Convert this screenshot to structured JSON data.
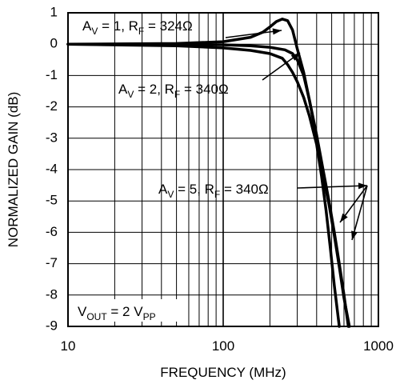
{
  "chart_data": {
    "type": "line",
    "title": "",
    "xlabel": "FREQUENCY (MHz)",
    "ylabel": "NORMALIZED GAIN (dB)",
    "xscale": "log",
    "xlim": [
      10,
      1000
    ],
    "ylim": [
      -9,
      1
    ],
    "x_ticks": [
      "10",
      "100",
      "1000"
    ],
    "y_ticks": [
      "1",
      "0",
      "-1",
      "-2",
      "-3",
      "-4",
      "-5",
      "-6",
      "-7",
      "-8",
      "-9"
    ],
    "grid": true,
    "series": [
      {
        "name": "A_V = 1, R_F = 324Ω",
        "x": [
          10,
          50,
          100,
          150,
          180,
          200,
          220,
          240,
          260,
          280,
          300,
          330,
          360,
          400,
          440,
          480,
          520,
          560,
          600,
          640
        ],
        "y": [
          0,
          0.02,
          0.08,
          0.22,
          0.38,
          0.55,
          0.72,
          0.8,
          0.75,
          0.45,
          -0.15,
          -0.9,
          -1.8,
          -2.9,
          -4.0,
          -5.0,
          -6.0,
          -7.0,
          -8.0,
          -9.0
        ]
      },
      {
        "name": "A_V = 2, R_F = 340Ω",
        "x": [
          10,
          50,
          100,
          150,
          200,
          240,
          260,
          280,
          300,
          330,
          360,
          400,
          430,
          460,
          490,
          520,
          560
        ],
        "y": [
          0,
          -0.05,
          -0.12,
          -0.2,
          -0.3,
          -0.45,
          -0.65,
          -0.9,
          -1.2,
          -1.7,
          -2.3,
          -3.2,
          -4.2,
          -5.3,
          -6.5,
          -7.7,
          -9.0
        ]
      },
      {
        "name": "A_V = 5, R_F = 340Ω",
        "x": [
          10,
          50,
          100,
          150,
          200,
          250,
          280,
          300,
          330,
          360,
          400,
          440,
          480,
          520,
          560,
          600,
          650
        ],
        "y": [
          0,
          -0.01,
          -0.02,
          -0.05,
          -0.1,
          -0.18,
          -0.3,
          -0.5,
          -1.0,
          -1.8,
          -3.0,
          -4.2,
          -5.1,
          -6.1,
          -7.1,
          -8.1,
          -9.0
        ]
      }
    ],
    "annotations": {
      "av1": {
        "a": "A",
        "sub1": "V",
        "mid": " = 1, R",
        "sub2": "F",
        "end": " = 324Ω"
      },
      "av2": {
        "a": "A",
        "sub1": "V",
        "mid": " = 2, R",
        "sub2": "F",
        "end": " = 340Ω"
      },
      "av5": {
        "a": "A",
        "sub1": "V",
        "mid": " = 5, R",
        "sub2": "F",
        "end": " = 340Ω"
      },
      "vout": {
        "a": "V",
        "sub1": "OUT",
        "mid": " = 2 V",
        "sub2": "PP",
        "end": ""
      }
    }
  }
}
